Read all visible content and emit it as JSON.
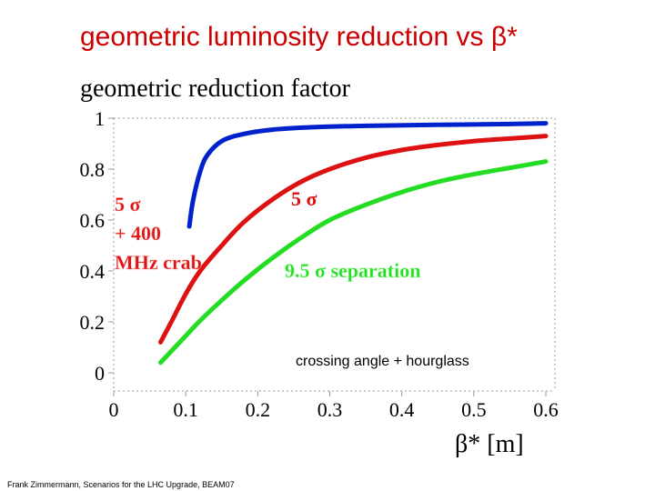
{
  "slide": {
    "title": "geometric luminosity reduction vs β*",
    "footer": "Frank Zimmermann, Scenarios for the LHC Upgrade, BEAM07"
  },
  "chart_data": {
    "type": "line",
    "title": "geometric reduction factor",
    "xlabel": "β* [m]",
    "ylabel": "",
    "xlim": [
      0,
      0.6
    ],
    "ylim": [
      0,
      1
    ],
    "x_ticks": [
      "0",
      "0.1",
      "0.2",
      "0.3",
      "0.4",
      "0.5",
      "0.6"
    ],
    "y_ticks": [
      "0",
      "0.2",
      "0.4",
      "0.6",
      "0.8",
      "1"
    ],
    "grid": false,
    "series": [
      {
        "name": "5 σ + 400 MHz crab",
        "color": "#0022cc",
        "x": [
          0.105,
          0.11,
          0.12,
          0.13,
          0.15,
          0.18,
          0.22,
          0.28,
          0.35,
          0.45,
          0.55,
          0.6
        ],
        "y": [
          0.575,
          0.675,
          0.79,
          0.855,
          0.91,
          0.938,
          0.955,
          0.965,
          0.97,
          0.974,
          0.977,
          0.98
        ]
      },
      {
        "name": "5 σ",
        "color": "#dd1111",
        "x": [
          0.065,
          0.08,
          0.1,
          0.12,
          0.15,
          0.18,
          0.22,
          0.26,
          0.3,
          0.35,
          0.4,
          0.45,
          0.5,
          0.55,
          0.6
        ],
        "y": [
          0.12,
          0.2,
          0.31,
          0.4,
          0.5,
          0.59,
          0.68,
          0.75,
          0.8,
          0.845,
          0.875,
          0.895,
          0.91,
          0.92,
          0.93
        ]
      },
      {
        "name": "9.5 σ separation",
        "color": "#22dd22",
        "x": [
          0.065,
          0.08,
          0.1,
          0.12,
          0.15,
          0.18,
          0.22,
          0.26,
          0.3,
          0.35,
          0.4,
          0.45,
          0.5,
          0.55,
          0.6
        ],
        "y": [
          0.04,
          0.085,
          0.145,
          0.205,
          0.285,
          0.36,
          0.45,
          0.53,
          0.6,
          0.66,
          0.71,
          0.75,
          0.78,
          0.805,
          0.83
        ]
      }
    ],
    "annotations": {
      "crab_line1": "5 σ",
      "crab_line2": "+ 400",
      "crab_line3": "MHz crab",
      "red_label": "5 σ",
      "green_label": "9.5 σ separation",
      "bottom_note": "crossing angle + hourglass"
    }
  }
}
